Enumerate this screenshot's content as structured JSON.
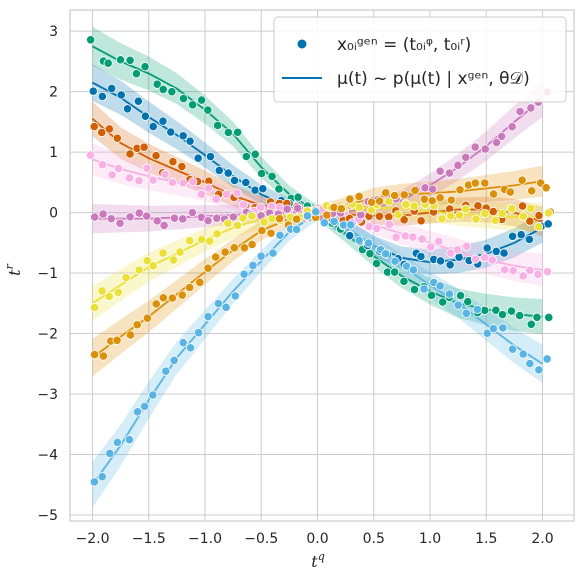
{
  "chart_data": {
    "type": "scatter",
    "title": "",
    "xlabel": "t",
    "xlabel_sup": "q",
    "ylabel": "t",
    "ylabel_sup": "r",
    "xlim": [
      -2.2,
      2.28
    ],
    "ylim": [
      -5.1,
      3.35
    ],
    "xticks": [
      -2.0,
      -1.5,
      -1.0,
      -0.5,
      0.0,
      0.5,
      1.0,
      1.5,
      2.0
    ],
    "xtick_labels": [
      "−2.0",
      "−1.5",
      "−1.0",
      "−0.5",
      "0.0",
      "0.5",
      "1.0",
      "1.5",
      "2.0"
    ],
    "yticks": [
      -5,
      -4,
      -3,
      -2,
      -1,
      0,
      1,
      2,
      3
    ],
    "ytick_labels": [
      "−5",
      "−4",
      "−3",
      "−2",
      "−1",
      "0",
      "1",
      "2",
      "3"
    ],
    "grid": true,
    "legend_placement": "top-right",
    "legend": {
      "scatter_label": "x₀ᵢᵍᵉⁿ = (t₀ᵢᵠ, t₀ᵢʳ)",
      "line_label": "μ(t) ~ p(μ(t) | xᵍᵉⁿ, θ𝒟)"
    },
    "series": [
      {
        "color": "#029e73",
        "points": [
          [
            -2.0,
            2.75
          ],
          [
            -1.75,
            2.5
          ],
          [
            -1.5,
            2.3
          ],
          [
            -1.25,
            2.05
          ],
          [
            -1.0,
            1.7
          ],
          [
            -0.75,
            1.3
          ],
          [
            -0.5,
            0.75
          ],
          [
            -0.25,
            0.3
          ],
          [
            0.0,
            0.0
          ],
          [
            0.25,
            -0.35
          ],
          [
            0.5,
            -0.72
          ],
          [
            0.75,
            -1.05
          ],
          [
            1.0,
            -1.3
          ],
          [
            1.25,
            -1.5
          ],
          [
            1.5,
            -1.6
          ],
          [
            1.75,
            -1.68
          ],
          [
            2.0,
            -1.72
          ]
        ]
      },
      {
        "color": "#0173b2",
        "points": [
          [
            -2.0,
            2.15
          ],
          [
            -1.75,
            1.9
          ],
          [
            -1.5,
            1.58
          ],
          [
            -1.25,
            1.28
          ],
          [
            -1.0,
            0.95
          ],
          [
            -0.75,
            0.6
          ],
          [
            -0.5,
            0.3
          ],
          [
            -0.25,
            0.1
          ],
          [
            0.0,
            0.0
          ],
          [
            0.25,
            -0.25
          ],
          [
            0.5,
            -0.55
          ],
          [
            0.75,
            -0.75
          ],
          [
            1.0,
            -0.82
          ],
          [
            1.25,
            -0.78
          ],
          [
            1.5,
            -0.68
          ],
          [
            1.75,
            -0.5
          ],
          [
            2.0,
            -0.25
          ]
        ]
      },
      {
        "color": "#d55e00",
        "points": [
          [
            -2.0,
            1.55
          ],
          [
            -1.75,
            1.15
          ],
          [
            -1.5,
            0.9
          ],
          [
            -1.25,
            0.7
          ],
          [
            -1.0,
            0.5
          ],
          [
            -0.75,
            0.28
          ],
          [
            -0.5,
            0.12
          ],
          [
            -0.25,
            0.04
          ],
          [
            0.0,
            0.0
          ],
          [
            0.25,
            -0.03
          ],
          [
            0.5,
            -0.05
          ],
          [
            0.75,
            -0.05
          ],
          [
            1.0,
            0.0
          ],
          [
            1.25,
            0.05
          ],
          [
            1.5,
            0.05
          ],
          [
            1.75,
            0.0
          ],
          [
            2.0,
            -0.15
          ]
        ]
      },
      {
        "color": "#fbafe4",
        "points": [
          [
            -2.0,
            0.88
          ],
          [
            -1.75,
            0.72
          ],
          [
            -1.5,
            0.6
          ],
          [
            -1.25,
            0.5
          ],
          [
            -1.0,
            0.38
          ],
          [
            -0.75,
            0.22
          ],
          [
            -0.5,
            0.1
          ],
          [
            -0.25,
            0.03
          ],
          [
            0.0,
            0.0
          ],
          [
            0.25,
            -0.08
          ],
          [
            0.5,
            -0.2
          ],
          [
            0.75,
            -0.35
          ],
          [
            1.0,
            -0.5
          ],
          [
            1.25,
            -0.65
          ],
          [
            1.5,
            -0.78
          ],
          [
            1.75,
            -0.88
          ],
          [
            2.0,
            -0.95
          ]
        ]
      },
      {
        "color": "#cc78bc",
        "points": [
          [
            -2.0,
            -0.1
          ],
          [
            -1.75,
            -0.1
          ],
          [
            -1.5,
            -0.1
          ],
          [
            -1.25,
            -0.08
          ],
          [
            -1.0,
            -0.06
          ],
          [
            -0.75,
            -0.04
          ],
          [
            -0.5,
            -0.02
          ],
          [
            -0.25,
            0.0
          ],
          [
            0.0,
            0.0
          ],
          [
            0.25,
            0.02
          ],
          [
            0.5,
            0.08
          ],
          [
            0.75,
            0.2
          ],
          [
            1.0,
            0.45
          ],
          [
            1.25,
            0.75
          ],
          [
            1.5,
            1.1
          ],
          [
            1.75,
            1.5
          ],
          [
            2.0,
            1.88
          ]
        ]
      },
      {
        "color": "#ece133",
        "points": [
          [
            -2.0,
            -1.5
          ],
          [
            -1.75,
            -1.2
          ],
          [
            -1.5,
            -0.9
          ],
          [
            -1.25,
            -0.68
          ],
          [
            -1.0,
            -0.45
          ],
          [
            -0.75,
            -0.25
          ],
          [
            -0.5,
            -0.1
          ],
          [
            -0.25,
            -0.03
          ],
          [
            0.0,
            0.0
          ],
          [
            0.25,
            0.05
          ],
          [
            0.5,
            0.08
          ],
          [
            0.75,
            0.07
          ],
          [
            1.0,
            0.02
          ],
          [
            1.25,
            -0.02
          ],
          [
            1.5,
            -0.05
          ],
          [
            1.75,
            -0.07
          ],
          [
            2.0,
            -0.08
          ]
        ]
      },
      {
        "color": "#de8f05",
        "points": [
          [
            -2.0,
            -2.4
          ],
          [
            -1.75,
            -2.05
          ],
          [
            -1.5,
            -1.72
          ],
          [
            -1.25,
            -1.35
          ],
          [
            -1.0,
            -0.98
          ],
          [
            -0.75,
            -0.62
          ],
          [
            -0.5,
            -0.3
          ],
          [
            -0.25,
            -0.1
          ],
          [
            0.0,
            0.0
          ],
          [
            0.25,
            0.12
          ],
          [
            0.5,
            0.25
          ],
          [
            0.75,
            0.3
          ],
          [
            1.0,
            0.32
          ],
          [
            1.25,
            0.35
          ],
          [
            1.5,
            0.4
          ],
          [
            1.75,
            0.45
          ],
          [
            2.0,
            0.52
          ]
        ]
      },
      {
        "color": "#56b4e9",
        "points": [
          [
            -2.0,
            -4.5
          ],
          [
            -1.75,
            -3.85
          ],
          [
            -1.5,
            -3.1
          ],
          [
            -1.25,
            -2.4
          ],
          [
            -1.0,
            -1.85
          ],
          [
            -0.75,
            -1.3
          ],
          [
            -0.5,
            -0.8
          ],
          [
            -0.25,
            -0.32
          ],
          [
            0.0,
            0.0
          ],
          [
            0.25,
            -0.25
          ],
          [
            0.5,
            -0.55
          ],
          [
            0.75,
            -0.88
          ],
          [
            1.0,
            -1.2
          ],
          [
            1.25,
            -1.5
          ],
          [
            1.5,
            -1.85
          ],
          [
            1.75,
            -2.2
          ],
          [
            2.0,
            -2.5
          ]
        ]
      }
    ]
  }
}
